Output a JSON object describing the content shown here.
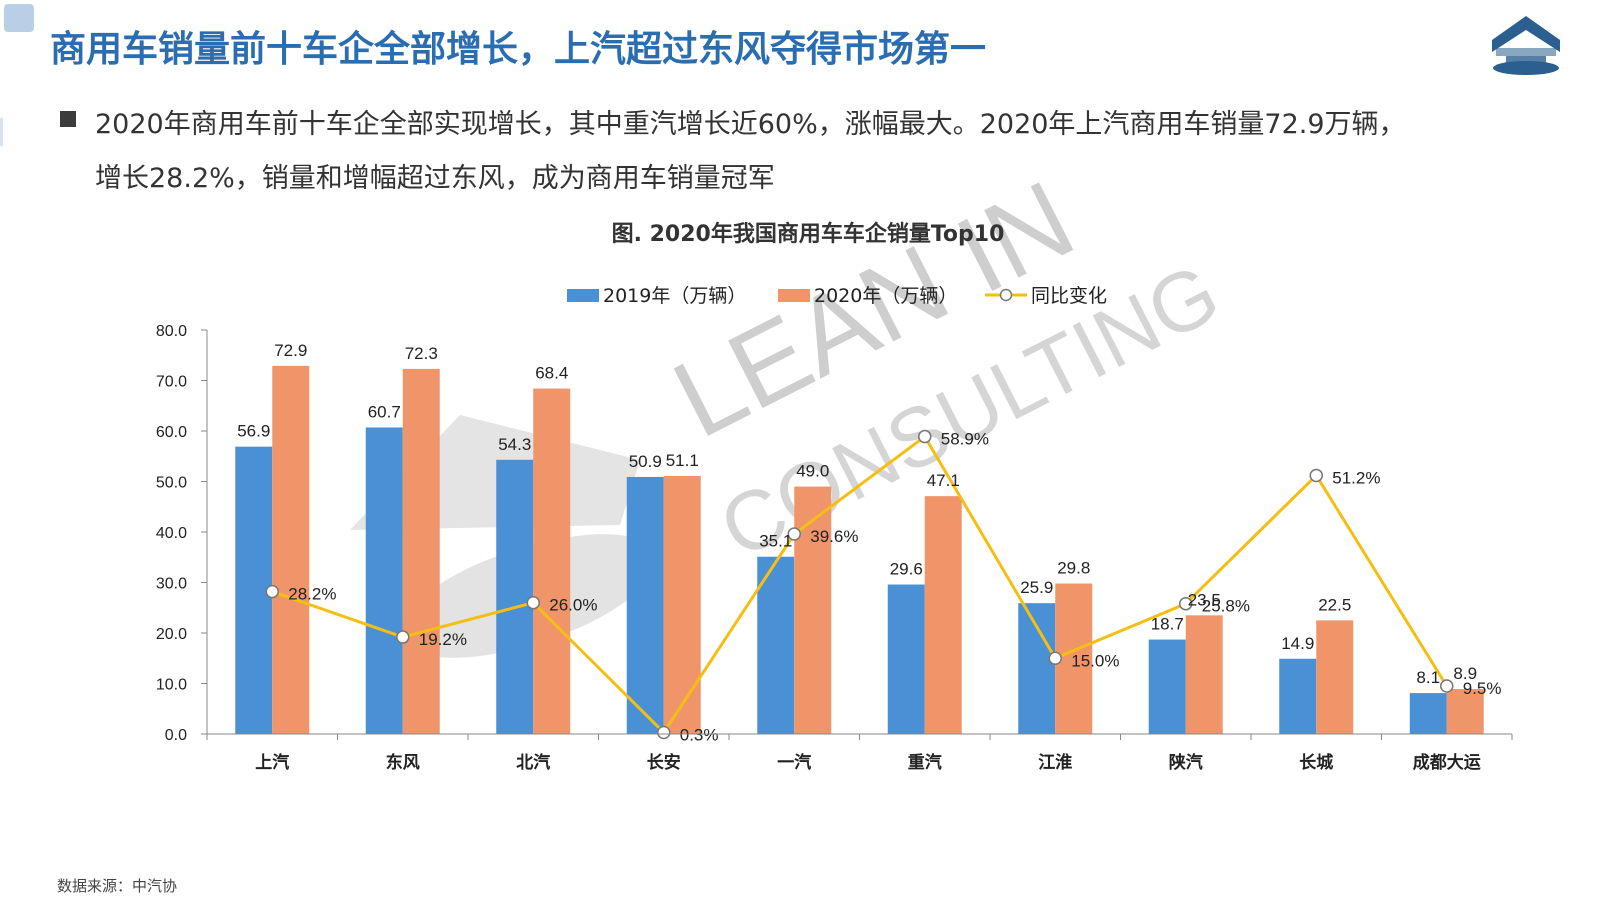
{
  "page": {
    "title": "商用车销量前十车企全部增长，上汽超过东风夺得市场第一",
    "summary_line1": "2020年商用车前十车企全部实现增长，其中重汽增长近60%，涨幅最大。2020年上汽商用车销量72.9万辆，",
    "summary_line2": "增长28.2%，销量和增幅超过东风，成为商用车销量冠军",
    "source": "数据来源：中汽协",
    "watermark_line1": "LEAN IN",
    "watermark_line2": "CONSULTING"
  },
  "colors": {
    "title": "#2a6db0",
    "bar2019": "#4a90d4",
    "bar2020": "#f0956a",
    "line": "#f5be12",
    "logo": "#2a5f8f"
  },
  "icons": {
    "logo": "house-roof-logo-icon",
    "bullet": "square-bullet-icon",
    "line_marker": "circle-marker-icon"
  },
  "chart_data": {
    "type": "bar",
    "title": "图. 2020年我国商用车车企销量Top10",
    "categories": [
      "上汽",
      "东风",
      "北汽",
      "长安",
      "一汽",
      "重汽",
      "江淮",
      "陕汽",
      "长城",
      "成都大运"
    ],
    "series": [
      {
        "name": "2019年（万辆）",
        "type": "bar",
        "values": [
          56.9,
          60.7,
          54.3,
          50.9,
          35.1,
          29.6,
          25.9,
          18.7,
          14.9,
          8.1
        ]
      },
      {
        "name": "2020年（万辆）",
        "type": "bar",
        "values": [
          72.9,
          72.3,
          68.4,
          51.1,
          49.0,
          47.1,
          29.8,
          23.5,
          22.5,
          8.9
        ]
      },
      {
        "name": "同比变化",
        "type": "line",
        "values": [
          28.2,
          19.2,
          26.0,
          0.3,
          39.6,
          58.9,
          15.0,
          25.8,
          51.2,
          9.5
        ]
      }
    ],
    "bar_labels_2019": [
      "56.9",
      "60.7",
      "54.3",
      "50.9",
      "35.1",
      "29.6",
      "25.9",
      "18.7",
      "14.9",
      "8.1"
    ],
    "bar_labels_2020": [
      "72.9",
      "72.3",
      "68.4",
      "51.1",
      "49.0",
      "47.1",
      "29.8",
      "23.5",
      "22.5",
      "8.9"
    ],
    "line_labels": [
      "28.2%",
      "19.2%",
      "26.0%",
      "0.3%",
      "39.6%",
      "58.9%",
      "15.0%",
      "25.8%",
      "51.2%",
      "9.5%"
    ],
    "yticks": [
      "0.0",
      "10.0",
      "20.0",
      "30.0",
      "40.0",
      "50.0",
      "60.0",
      "70.0",
      "80.0"
    ],
    "ylim": [
      0,
      80
    ],
    "line_scale_percent": [
      0,
      80
    ],
    "legend_position": "top-center",
    "grid": false
  }
}
